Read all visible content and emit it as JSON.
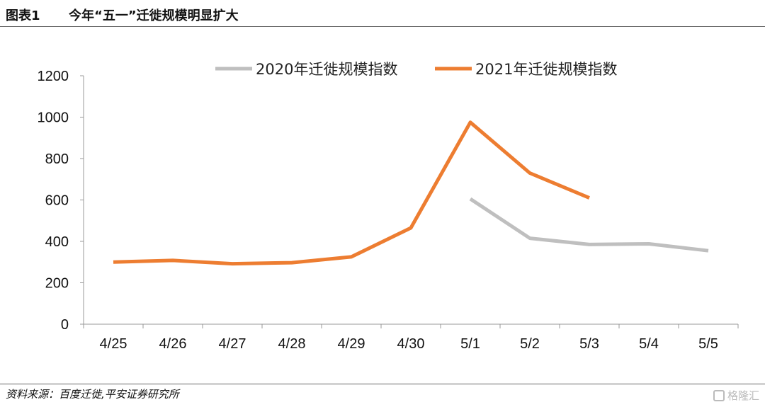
{
  "header": {
    "figure_number": "图表1",
    "title": "今年“五一”迁徙规模明显扩大"
  },
  "footer": {
    "source": "资料来源：百度迁徙,平安证券研究所",
    "watermark": "格隆汇"
  },
  "chart_data": {
    "type": "line",
    "categories": [
      "4/25",
      "4/26",
      "4/27",
      "4/28",
      "4/29",
      "4/30",
      "5/1",
      "5/2",
      "5/3",
      "5/4",
      "5/5"
    ],
    "ylim": [
      0,
      1200
    ],
    "yticks": [
      "0",
      "200",
      "400",
      "600",
      "800",
      "1000",
      "1200"
    ],
    "legend_position": "top",
    "grid": false,
    "series": [
      {
        "name": "2020年迁徙规模指数",
        "color": "#bfbfbf",
        "values": [
          null,
          null,
          null,
          null,
          null,
          null,
          605,
          415,
          385,
          388,
          355
        ]
      },
      {
        "name": "2021年迁徙规模指数",
        "color": "#ed7d31",
        "values": [
          300,
          308,
          292,
          297,
          325,
          465,
          975,
          730,
          610,
          null,
          null
        ]
      }
    ]
  }
}
